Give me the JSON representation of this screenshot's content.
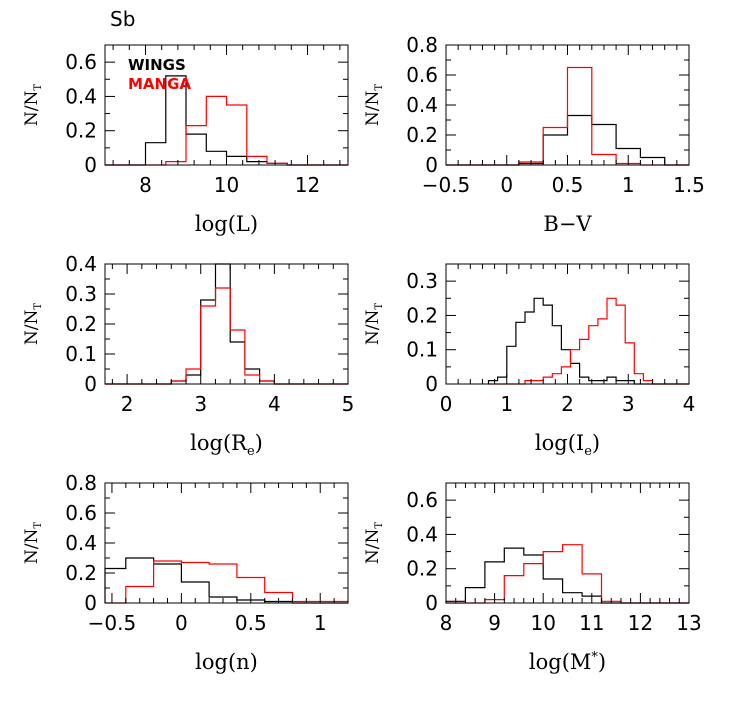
{
  "figure": {
    "label": "Sb",
    "legend": [
      {
        "name": "WINGS",
        "color": "#000000"
      },
      {
        "name": "MANGA",
        "color": "#ff0000"
      }
    ]
  },
  "colors": {
    "wings": "#000000",
    "manga": "#ff0000",
    "axes": "#000000"
  },
  "chart_data": [
    {
      "type": "histogram",
      "id": "logL",
      "xlabel": "log(L)",
      "ylabel": "N/N_T",
      "xlim": [
        7,
        13
      ],
      "ylim": [
        0,
        0.7
      ],
      "xticks": [
        8,
        10,
        12
      ],
      "yticks": [
        0,
        0.2,
        0.4,
        0.6
      ],
      "xtick_labels": [
        "8",
        "10",
        "12"
      ],
      "ytick_labels": [
        "0",
        "0.2",
        "0.4",
        "0.6"
      ],
      "legend": true,
      "series": [
        {
          "name": "WINGS",
          "color": "#000000",
          "edges": [
            7,
            7.5,
            8,
            8.5,
            9,
            9.5,
            10,
            10.5,
            11,
            11.5,
            12,
            12.5,
            13
          ],
          "values": [
            0,
            0,
            0.13,
            0.52,
            0.18,
            0.08,
            0.05,
            0.02,
            0.01,
            0,
            0,
            0
          ]
        },
        {
          "name": "MANGA",
          "color": "#ff0000",
          "edges": [
            7,
            7.5,
            8,
            8.5,
            9,
            9.5,
            10,
            10.5,
            11,
            11.5,
            12,
            12.5,
            13
          ],
          "values": [
            0,
            0,
            0,
            0.02,
            0.23,
            0.4,
            0.35,
            0.05,
            0.01,
            0,
            0,
            0
          ]
        }
      ]
    },
    {
      "type": "histogram",
      "id": "BV",
      "xlabel": "B−V",
      "ylabel": "N/N_T",
      "xlim": [
        -0.5,
        1.5
      ],
      "ylim": [
        0,
        0.8
      ],
      "xticks": [
        -0.5,
        0,
        0.5,
        1,
        1.5
      ],
      "yticks": [
        0,
        0.2,
        0.4,
        0.6,
        0.8
      ],
      "xtick_labels": [
        "−0.5",
        "0",
        "0.5",
        "1",
        "1.5"
      ],
      "ytick_labels": [
        "0",
        "0.2",
        "0.4",
        "0.6",
        "0.8"
      ],
      "series": [
        {
          "name": "WINGS",
          "color": "#000000",
          "edges": [
            -0.5,
            -0.3,
            -0.1,
            0.1,
            0.3,
            0.5,
            0.7,
            0.9,
            1.1,
            1.3,
            1.5
          ],
          "values": [
            0,
            0,
            0,
            0.01,
            0.2,
            0.33,
            0.27,
            0.11,
            0.05,
            0
          ]
        },
        {
          "name": "MANGA",
          "color": "#ff0000",
          "edges": [
            -0.5,
            -0.3,
            -0.1,
            0.1,
            0.3,
            0.5,
            0.7,
            0.9,
            1.1,
            1.3,
            1.5
          ],
          "values": [
            0,
            0,
            0,
            0.02,
            0.25,
            0.65,
            0.07,
            0.01,
            0,
            0
          ]
        }
      ]
    },
    {
      "type": "histogram",
      "id": "logRe",
      "xlabel": "log(R",
      "xlabel_sub": "e",
      "xlabel_end": ")",
      "ylabel": "N/N_T",
      "xlim": [
        1.7,
        5
      ],
      "ylim": [
        0,
        0.4
      ],
      "xticks": [
        2,
        3,
        4,
        5
      ],
      "yticks": [
        0,
        0.1,
        0.2,
        0.3,
        0.4
      ],
      "xtick_labels": [
        "2",
        "3",
        "4",
        "5"
      ],
      "ytick_labels": [
        "0",
        "0.1",
        "0.2",
        "0.3",
        "0.4"
      ],
      "series": [
        {
          "name": "WINGS",
          "color": "#000000",
          "edges": [
            1.7,
            2.6,
            2.8,
            3.0,
            3.2,
            3.4,
            3.6,
            3.8,
            4.0,
            5.0
          ],
          "values": [
            0,
            0.01,
            0.03,
            0.28,
            0.4,
            0.14,
            0.05,
            0.01,
            0
          ]
        },
        {
          "name": "MANGA",
          "color": "#ff0000",
          "edges": [
            1.7,
            2.6,
            2.8,
            3.0,
            3.2,
            3.4,
            3.6,
            3.8,
            4.0,
            5.0
          ],
          "values": [
            0,
            0.01,
            0.05,
            0.26,
            0.32,
            0.18,
            0.03,
            0.01,
            0
          ]
        }
      ]
    },
    {
      "type": "histogram",
      "id": "logIe",
      "xlabel": "log(I",
      "xlabel_sub": "e",
      "xlabel_end": ")",
      "ylabel": "N/N_T",
      "xlim": [
        0,
        4
      ],
      "ylim": [
        0,
        0.35
      ],
      "xticks": [
        0,
        1,
        2,
        3,
        4
      ],
      "yticks": [
        0,
        0.1,
        0.2,
        0.3
      ],
      "xtick_labels": [
        "0",
        "1",
        "2",
        "3",
        "4"
      ],
      "ytick_labels": [
        "0",
        "0.1",
        "0.2",
        "0.3"
      ],
      "series": [
        {
          "name": "WINGS",
          "color": "#000000",
          "edges": [
            0.7,
            0.85,
            1.0,
            1.15,
            1.3,
            1.45,
            1.6,
            1.75,
            1.9,
            2.05,
            2.2,
            2.35,
            2.5,
            2.65,
            2.8,
            2.95,
            3.1,
            3.25,
            3.4,
            4.0
          ],
          "values": [
            0.01,
            0.02,
            0.11,
            0.18,
            0.21,
            0.25,
            0.23,
            0.17,
            0.1,
            0.06,
            0.02,
            0.01,
            0.01,
            0.02,
            0.01,
            0.01,
            0,
            0,
            0
          ]
        },
        {
          "name": "MANGA",
          "color": "#ff0000",
          "edges": [
            0.7,
            0.85,
            1.0,
            1.15,
            1.3,
            1.45,
            1.6,
            1.75,
            1.9,
            2.05,
            2.2,
            2.35,
            2.5,
            2.65,
            2.8,
            2.95,
            3.1,
            3.25,
            3.4,
            4.0
          ],
          "values": [
            0,
            0,
            0,
            0,
            0.01,
            0.01,
            0.02,
            0.03,
            0.05,
            0.1,
            0.13,
            0.17,
            0.19,
            0.25,
            0.23,
            0.12,
            0.03,
            0.01,
            0
          ]
        }
      ]
    },
    {
      "type": "histogram",
      "id": "logn",
      "xlabel": "log(n)",
      "ylabel": "N/N_T",
      "xlim": [
        -0.55,
        1.2
      ],
      "ylim": [
        0,
        0.8
      ],
      "xticks": [
        -0.5,
        0,
        0.5,
        1
      ],
      "yticks": [
        0,
        0.2,
        0.4,
        0.6,
        0.8
      ],
      "xtick_labels": [
        "−0.5",
        "0",
        "0.5",
        "1"
      ],
      "ytick_labels": [
        "0",
        "0.2",
        "0.4",
        "0.6",
        "0.8"
      ],
      "series": [
        {
          "name": "WINGS",
          "color": "#000000",
          "edges": [
            -0.55,
            -0.4,
            -0.2,
            0.0,
            0.2,
            0.4,
            0.6,
            0.8,
            1.2
          ],
          "values": [
            0.23,
            0.3,
            0.26,
            0.14,
            0.04,
            0.02,
            0.01,
            0
          ]
        },
        {
          "name": "MANGA",
          "color": "#ff0000",
          "edges": [
            -0.55,
            -0.4,
            -0.2,
            0.0,
            0.2,
            0.4,
            0.6,
            0.8,
            1.2
          ],
          "values": [
            0,
            0.11,
            0.28,
            0.27,
            0.26,
            0.17,
            0.07,
            0.01
          ]
        }
      ]
    },
    {
      "type": "histogram",
      "id": "logM",
      "xlabel": "log(M",
      "xlabel_sup": "*",
      "xlabel_end": ")",
      "ylabel": "N/N_T",
      "xlim": [
        8,
        13
      ],
      "ylim": [
        0,
        0.7
      ],
      "xticks": [
        8,
        9,
        10,
        11,
        12,
        13
      ],
      "yticks": [
        0,
        0.2,
        0.4,
        0.6
      ],
      "xtick_labels": [
        "8",
        "9",
        "10",
        "11",
        "12",
        "13"
      ],
      "ytick_labels": [
        "0",
        "0.2",
        "0.4",
        "0.6"
      ],
      "series": [
        {
          "name": "WINGS",
          "color": "#000000",
          "edges": [
            8,
            8.4,
            8.8,
            9.2,
            9.6,
            10.0,
            10.4,
            10.8,
            11.2,
            11.6,
            12.0,
            13.0
          ],
          "values": [
            0.01,
            0.09,
            0.24,
            0.32,
            0.28,
            0.14,
            0.06,
            0.04,
            0,
            0,
            0
          ]
        },
        {
          "name": "MANGA",
          "color": "#ff0000",
          "edges": [
            8,
            8.4,
            8.8,
            9.2,
            9.6,
            10.0,
            10.4,
            10.8,
            11.2,
            11.6,
            12.0,
            13.0
          ],
          "values": [
            0,
            0,
            0.02,
            0.16,
            0.23,
            0.3,
            0.34,
            0.17,
            0.01,
            0,
            0
          ]
        }
      ]
    }
  ]
}
